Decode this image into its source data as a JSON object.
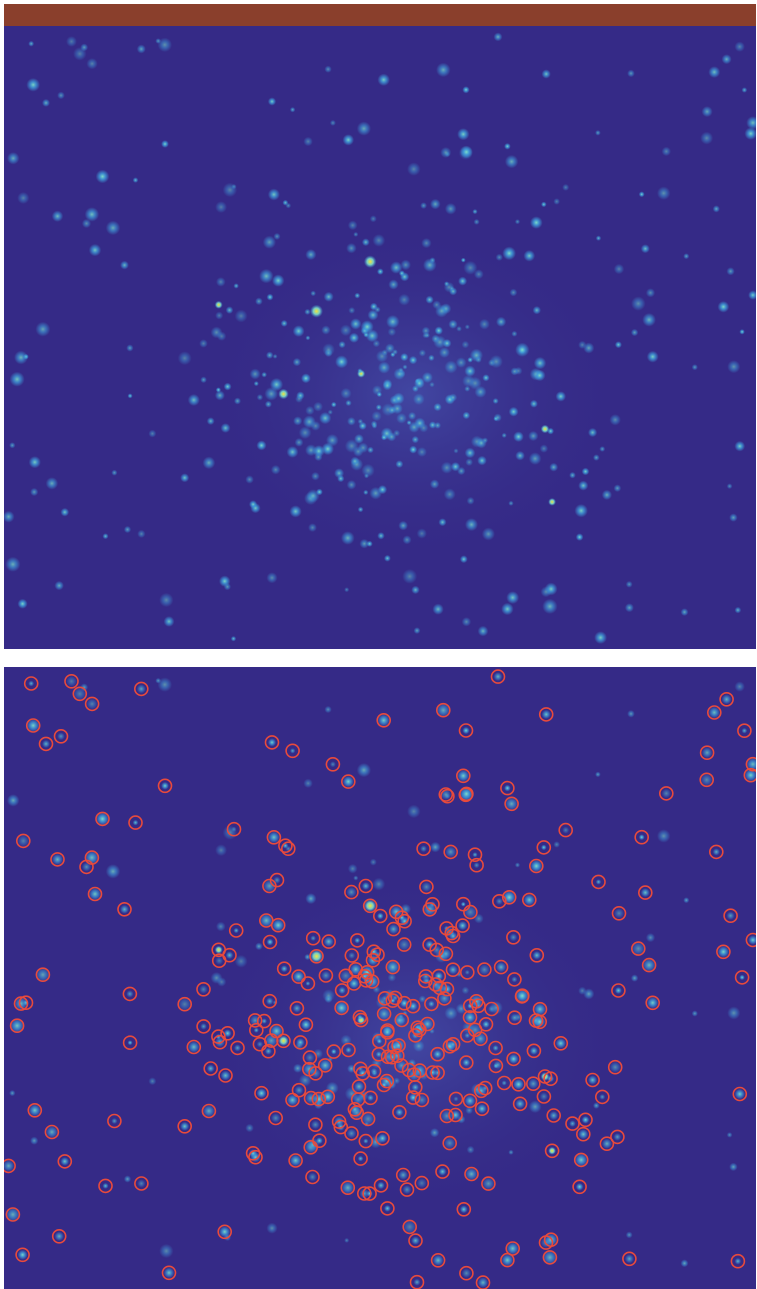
{
  "colors": {
    "background": "#ffffff",
    "field": "#352A87",
    "top_strip": "#8A3F2C",
    "marker": "#E84A3C",
    "star_glow": "#3FA3E0",
    "star_core": "#7FE0C8",
    "star_bright": "#F4E63A"
  },
  "panels": [
    {
      "name": "raw-star-field",
      "marked": false
    },
    {
      "name": "detected-star-field",
      "marked": true
    }
  ]
}
